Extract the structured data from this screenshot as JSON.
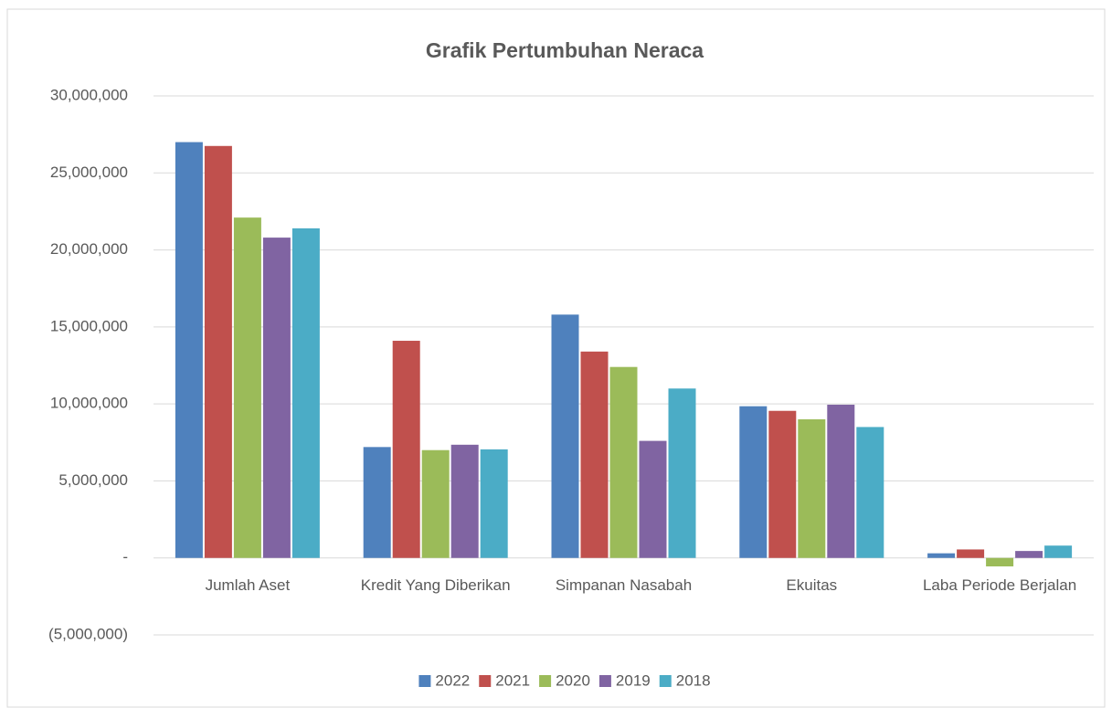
{
  "chart_data": {
    "type": "bar",
    "title": "Grafik Pertumbuhan Neraca",
    "categories": [
      "Jumlah Aset",
      "Kredit Yang Diberikan",
      "Simpanan Nasabah",
      "Ekuitas",
      "Laba Periode Berjalan"
    ],
    "series": [
      {
        "name": "2022",
        "color": "#4f81bd",
        "values": [
          27000000,
          7200000,
          15800000,
          9850000,
          300000
        ]
      },
      {
        "name": "2021",
        "color": "#c0504d",
        "values": [
          26750000,
          14100000,
          13400000,
          9550000,
          550000
        ]
      },
      {
        "name": "2020",
        "color": "#9bbb59",
        "values": [
          22100000,
          7000000,
          12400000,
          9000000,
          -550000
        ]
      },
      {
        "name": "2019",
        "color": "#8064a2",
        "values": [
          20800000,
          7350000,
          7600000,
          9950000,
          450000
        ]
      },
      {
        "name": "2018",
        "color": "#4bacc6",
        "values": [
          21400000,
          7050000,
          11000000,
          8500000,
          800000
        ]
      }
    ],
    "ylim": [
      -5000000,
      30000000
    ],
    "yticks": [
      {
        "value": -5000000,
        "label": "(5,000,000)"
      },
      {
        "value": 0,
        "label": "-"
      },
      {
        "value": 5000000,
        "label": "5,000,000"
      },
      {
        "value": 10000000,
        "label": "10,000,000"
      },
      {
        "value": 15000000,
        "label": "15,000,000"
      },
      {
        "value": 20000000,
        "label": "20,000,000"
      },
      {
        "value": 25000000,
        "label": "25,000,000"
      },
      {
        "value": 30000000,
        "label": "30,000,000"
      }
    ],
    "grid": true,
    "legend": "bottom"
  }
}
